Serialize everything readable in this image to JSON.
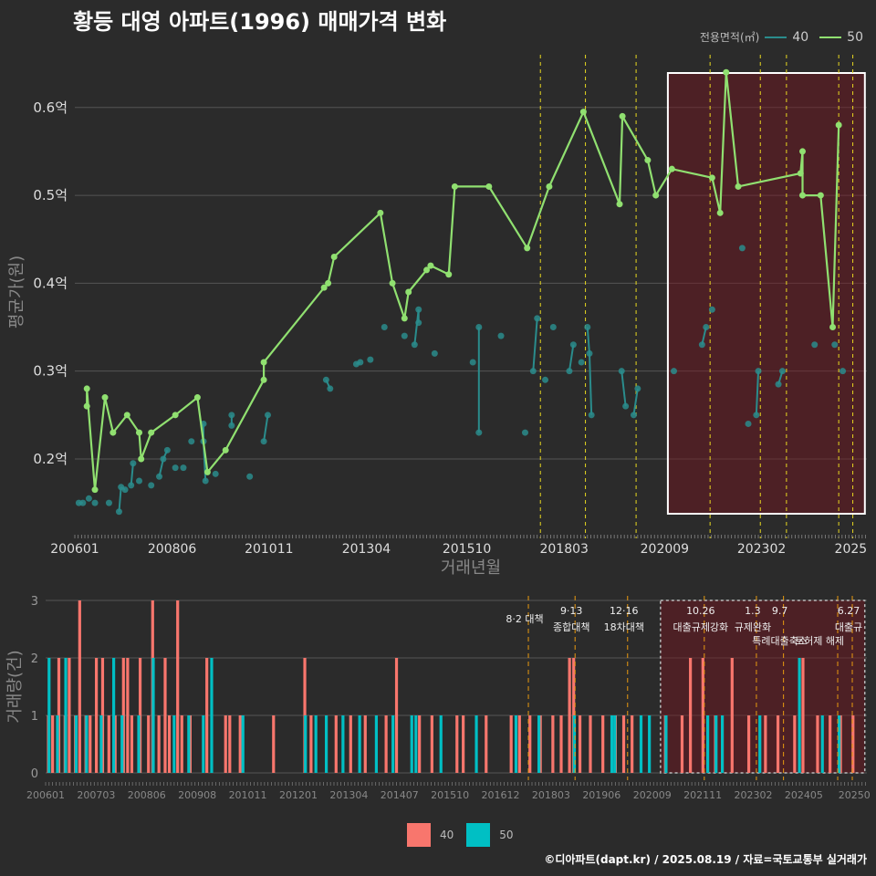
{
  "title": "황등 대영 아파트(1996) 매매가격 변화",
  "legend": {
    "title": "전용면적(㎡)",
    "items": [
      {
        "label": "40",
        "color": "#2a8c8c"
      },
      {
        "label": "50",
        "color": "#90e070"
      }
    ]
  },
  "bottom_legend": [
    {
      "label": "40",
      "color": "#f8766d"
    },
    {
      "label": "50",
      "color": "#00bfc4"
    }
  ],
  "credit": "©디아파트(dapt.kr) / 2025.08.19 / 자료=국토교통부 실거래가",
  "chart_data": [
    {
      "type": "line",
      "title": "황등 대영 아파트(1996) 매매가격 변화",
      "xlabel": "거래년월",
      "ylabel": "평균가(원)",
      "x_tick_labels": [
        "200601",
        "200806",
        "201011",
        "201304",
        "201510",
        "201803",
        "202009",
        "202302",
        "2025"
      ],
      "y_tick_labels": [
        "0.2억",
        "0.3억",
        "0.4억",
        "0.5억",
        "0.6억"
      ],
      "y_ticks": [
        0.2,
        0.3,
        0.4,
        0.5,
        0.6
      ],
      "ylim": [
        0.12,
        0.66
      ],
      "xlim": [
        2006.0,
        2025.7
      ],
      "grid": true,
      "legend_position": "top-right",
      "highlight_range": [
        2020.75,
        2025.65
      ],
      "policy_lines": [
        2017.58,
        2018.7,
        2019.96,
        2021.8,
        2023.05,
        2023.7,
        2025.0,
        2025.35
      ],
      "series": [
        {
          "name": "40",
          "color": "#2a8c8c",
          "points": [
            [
              2006.1,
              0.15
            ],
            [
              2006.2,
              0.15
            ],
            [
              2006.35,
              0.155
            ],
            [
              2006.5,
              0.15
            ],
            [
              2006.85,
              0.15
            ],
            [
              2007.1,
              0.14
            ],
            [
              2007.15,
              0.168
            ],
            [
              2007.25,
              0.165
            ],
            [
              2007.4,
              0.17
            ],
            [
              2007.45,
              0.195
            ],
            [
              2007.6,
              0.175
            ],
            [
              2007.9,
              0.17
            ],
            [
              2008.1,
              0.18
            ],
            [
              2008.2,
              0.2
            ],
            [
              2008.3,
              0.21
            ],
            [
              2008.5,
              0.19
            ],
            [
              2008.7,
              0.19
            ],
            [
              2008.9,
              0.22
            ],
            [
              2009.2,
              0.24
            ],
            [
              2009.2,
              0.22
            ],
            [
              2009.25,
              0.175
            ],
            [
              2009.5,
              0.183
            ],
            [
              2009.9,
              0.25
            ],
            [
              2009.9,
              0.238
            ],
            [
              2010.35,
              0.18
            ],
            [
              2010.7,
              0.22
            ],
            [
              2010.8,
              0.25
            ],
            [
              2012.25,
              0.29
            ],
            [
              2012.35,
              0.28
            ],
            [
              2013.0,
              0.308
            ],
            [
              2013.1,
              0.31
            ],
            [
              2013.35,
              0.313
            ],
            [
              2013.7,
              0.35
            ],
            [
              2014.2,
              0.34
            ],
            [
              2014.45,
              0.33
            ],
            [
              2014.55,
              0.37
            ],
            [
              2014.55,
              0.355
            ],
            [
              2014.95,
              0.32
            ],
            [
              2015.9,
              0.31
            ],
            [
              2016.05,
              0.35
            ],
            [
              2016.05,
              0.23
            ],
            [
              2016.6,
              0.34
            ],
            [
              2017.2,
              0.23
            ],
            [
              2017.4,
              0.3
            ],
            [
              2017.5,
              0.36
            ],
            [
              2017.7,
              0.29
            ],
            [
              2017.9,
              0.35
            ],
            [
              2018.3,
              0.3
            ],
            [
              2018.4,
              0.33
            ],
            [
              2018.6,
              0.31
            ],
            [
              2018.75,
              0.35
            ],
            [
              2018.8,
              0.32
            ],
            [
              2018.85,
              0.25
            ],
            [
              2019.6,
              0.3
            ],
            [
              2019.7,
              0.26
            ],
            [
              2019.9,
              0.25
            ],
            [
              2020.0,
              0.28
            ],
            [
              2020.9,
              0.3
            ],
            [
              2021.6,
              0.33
            ],
            [
              2021.7,
              0.35
            ],
            [
              2021.85,
              0.37
            ],
            [
              2022.6,
              0.44
            ],
            [
              2022.75,
              0.24
            ],
            [
              2022.95,
              0.25
            ],
            [
              2023.0,
              0.3
            ],
            [
              2023.5,
              0.285
            ],
            [
              2023.6,
              0.3
            ],
            [
              2024.4,
              0.33
            ],
            [
              2024.9,
              0.33
            ],
            [
              2025.1,
              0.3
            ]
          ]
        },
        {
          "name": "50",
          "color": "#90e070",
          "points": [
            [
              2006.3,
              0.26
            ],
            [
              2006.3,
              0.28
            ],
            [
              2006.5,
              0.165
            ],
            [
              2006.75,
              0.27
            ],
            [
              2006.95,
              0.23
            ],
            [
              2007.3,
              0.25
            ],
            [
              2007.6,
              0.23
            ],
            [
              2007.65,
              0.2
            ],
            [
              2007.9,
              0.23
            ],
            [
              2008.5,
              0.25
            ],
            [
              2009.05,
              0.27
            ],
            [
              2009.3,
              0.185
            ],
            [
              2009.75,
              0.21
            ],
            [
              2010.7,
              0.29
            ],
            [
              2010.7,
              0.31
            ],
            [
              2012.2,
              0.395
            ],
            [
              2012.3,
              0.4
            ],
            [
              2012.45,
              0.43
            ],
            [
              2013.6,
              0.48
            ],
            [
              2013.9,
              0.4
            ],
            [
              2014.2,
              0.36
            ],
            [
              2014.3,
              0.39
            ],
            [
              2014.75,
              0.415
            ],
            [
              2014.85,
              0.42
            ],
            [
              2015.3,
              0.41
            ],
            [
              2015.45,
              0.51
            ],
            [
              2016.3,
              0.51
            ],
            [
              2017.25,
              0.44
            ],
            [
              2017.8,
              0.51
            ],
            [
              2018.65,
              0.595
            ],
            [
              2019.55,
              0.49
            ],
            [
              2019.62,
              0.59
            ],
            [
              2020.25,
              0.54
            ],
            [
              2020.45,
              0.5
            ],
            [
              2020.85,
              0.53
            ],
            [
              2021.85,
              0.52
            ],
            [
              2022.05,
              0.48
            ],
            [
              2022.2,
              0.64
            ],
            [
              2022.5,
              0.51
            ],
            [
              2024.05,
              0.525
            ],
            [
              2024.1,
              0.55
            ],
            [
              2024.1,
              0.5
            ],
            [
              2024.55,
              0.5
            ],
            [
              2024.85,
              0.35
            ],
            [
              2025.0,
              0.58
            ]
          ]
        }
      ]
    },
    {
      "type": "bar",
      "ylabel": "거래량(건)",
      "ylim": [
        0,
        3
      ],
      "y_ticks": [
        0,
        1,
        2,
        3
      ],
      "x_tick_labels": [
        "200601",
        "200703",
        "200806",
        "200908",
        "201011",
        "201201",
        "201304",
        "201407",
        "201510",
        "201612",
        "201803",
        "201906",
        "202009",
        "202111",
        "202302",
        "202405",
        "20250"
      ],
      "highlight_range": [
        2020.75,
        2025.65
      ],
      "annotations": [
        {
          "x": 2017.58,
          "text": "8·2 대책"
        },
        {
          "x": 2018.7,
          "text": "9·13"
        },
        {
          "x": 2018.7,
          "text": "종합대책"
        },
        {
          "x": 2019.96,
          "text": "12·16"
        },
        {
          "x": 2019.96,
          "text": "18차대책"
        },
        {
          "x": 2021.8,
          "text": "10.26"
        },
        {
          "x": 2021.8,
          "text": "대출규제강화"
        },
        {
          "x": 2023.05,
          "text": "1.3"
        },
        {
          "x": 2023.05,
          "text": "규제완화"
        },
        {
          "x": 2023.7,
          "text": "9.7"
        },
        {
          "x": 2023.7,
          "text": "특례대출축소"
        },
        {
          "x": 2024.65,
          "text": "토허제 해제"
        },
        {
          "x": 2025.35,
          "text": "6.27"
        },
        {
          "x": 2025.35,
          "text": "대출규"
        }
      ],
      "series": [
        {
          "name": "40",
          "color": "#f8766d",
          "bars": [
            [
              2006.1,
              1
            ],
            [
              2006.2,
              1
            ],
            [
              2006.35,
              2
            ],
            [
              2006.5,
              1
            ],
            [
              2006.6,
              2
            ],
            [
              2006.75,
              1
            ],
            [
              2006.85,
              3
            ],
            [
              2007.0,
              1
            ],
            [
              2007.1,
              1
            ],
            [
              2007.25,
              2
            ],
            [
              2007.4,
              2
            ],
            [
              2007.55,
              1
            ],
            [
              2007.7,
              1
            ],
            [
              2007.9,
              2
            ],
            [
              2008.0,
              2
            ],
            [
              2008.1,
              1
            ],
            [
              2008.3,
              2
            ],
            [
              2008.5,
              1
            ],
            [
              2008.6,
              3
            ],
            [
              2008.75,
              1
            ],
            [
              2008.9,
              2
            ],
            [
              2009.0,
              1
            ],
            [
              2009.2,
              3
            ],
            [
              2009.3,
              1
            ],
            [
              2009.5,
              1
            ],
            [
              2009.9,
              2
            ],
            [
              2010.35,
              1
            ],
            [
              2010.45,
              1
            ],
            [
              2010.7,
              1
            ],
            [
              2011.5,
              1
            ],
            [
              2012.25,
              2
            ],
            [
              2012.4,
              1
            ],
            [
              2013.0,
              1
            ],
            [
              2013.35,
              1
            ],
            [
              2013.7,
              1
            ],
            [
              2014.2,
              1
            ],
            [
              2014.45,
              2
            ],
            [
              2015.0,
              1
            ],
            [
              2015.3,
              1
            ],
            [
              2015.9,
              1
            ],
            [
              2016.05,
              1
            ],
            [
              2016.6,
              1
            ],
            [
              2017.2,
              1
            ],
            [
              2017.4,
              1
            ],
            [
              2017.65,
              1
            ],
            [
              2017.9,
              1
            ],
            [
              2018.2,
              1
            ],
            [
              2018.4,
              1
            ],
            [
              2018.6,
              2
            ],
            [
              2018.7,
              2
            ],
            [
              2018.85,
              1
            ],
            [
              2019.1,
              1
            ],
            [
              2019.4,
              1
            ],
            [
              2019.7,
              1
            ],
            [
              2019.9,
              1
            ],
            [
              2020.1,
              1
            ],
            [
              2020.9,
              1
            ],
            [
              2021.3,
              1
            ],
            [
              2021.5,
              2
            ],
            [
              2021.8,
              2
            ],
            [
              2022.1,
              1
            ],
            [
              2022.5,
              2
            ],
            [
              2022.9,
              1
            ],
            [
              2023.3,
              1
            ],
            [
              2023.6,
              1
            ],
            [
              2024.0,
              1
            ],
            [
              2024.2,
              2
            ],
            [
              2024.55,
              1
            ],
            [
              2024.85,
              1
            ],
            [
              2025.1,
              1
            ],
            [
              2025.4,
              1
            ]
          ]
        },
        {
          "name": "50",
          "color": "#00bfc4",
          "bars": [
            [
              2006.05,
              2
            ],
            [
              2006.25,
              1
            ],
            [
              2006.45,
              2
            ],
            [
              2006.7,
              1
            ],
            [
              2006.95,
              1
            ],
            [
              2007.3,
              1
            ],
            [
              2007.6,
              2
            ],
            [
              2007.8,
              1
            ],
            [
              2008.2,
              1
            ],
            [
              2008.55,
              2
            ],
            [
              2009.05,
              1
            ],
            [
              2009.4,
              1
            ],
            [
              2009.75,
              1
            ],
            [
              2009.95,
              2
            ],
            [
              2010.7,
              1
            ],
            [
              2012.2,
              1
            ],
            [
              2012.45,
              1
            ],
            [
              2012.7,
              1
            ],
            [
              2013.1,
              1
            ],
            [
              2013.5,
              1
            ],
            [
              2013.9,
              1
            ],
            [
              2014.3,
              1
            ],
            [
              2014.75,
              1
            ],
            [
              2014.85,
              1
            ],
            [
              2015.45,
              1
            ],
            [
              2016.3,
              1
            ],
            [
              2017.25,
              1
            ],
            [
              2017.8,
              1
            ],
            [
              2018.65,
              1
            ],
            [
              2019.55,
              1
            ],
            [
              2019.62,
              1
            ],
            [
              2020.25,
              1
            ],
            [
              2020.45,
              1
            ],
            [
              2020.85,
              1
            ],
            [
              2021.85,
              1
            ],
            [
              2022.05,
              1
            ],
            [
              2022.2,
              1
            ],
            [
              2023.1,
              1
            ],
            [
              2024.05,
              2
            ],
            [
              2024.6,
              1
            ],
            [
              2025.0,
              1
            ]
          ]
        }
      ]
    }
  ]
}
